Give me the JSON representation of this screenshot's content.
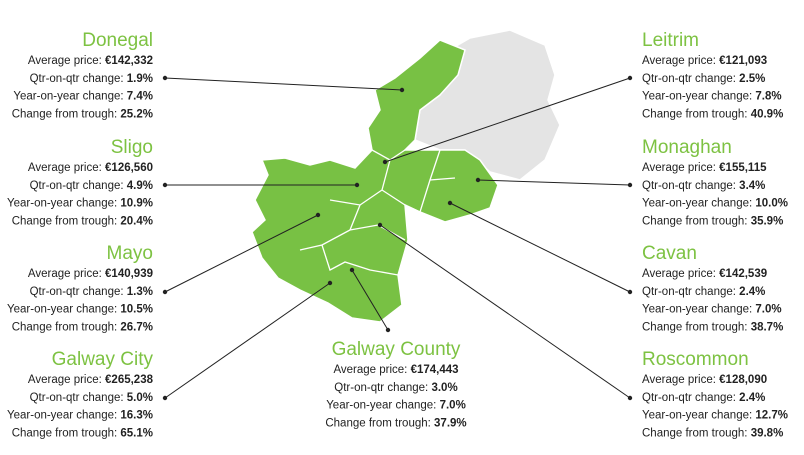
{
  "regions": [
    {
      "name": "Donegal",
      "stats": [
        {
          "label": "Average price:",
          "value": "€142,332"
        },
        {
          "label": "Qtr-on-qtr change:",
          "value": "1.9%"
        },
        {
          "label": "Year-on-year change:",
          "value": "7.4%"
        },
        {
          "label": "Change from trough:",
          "value": "25.2%"
        }
      ]
    },
    {
      "name": "Sligo",
      "stats": [
        {
          "label": "Average price:",
          "value": "€126,560"
        },
        {
          "label": "Qtr-on-qtr change:",
          "value": "4.9%"
        },
        {
          "label": "Year-on-year change:",
          "value": "10.9%"
        },
        {
          "label": "Change from trough:",
          "value": "20.4%"
        }
      ]
    },
    {
      "name": "Mayo",
      "stats": [
        {
          "label": "Average price:",
          "value": "€140,939"
        },
        {
          "label": "Qtr-on-qtr change:",
          "value": "1.3%"
        },
        {
          "label": "Year-on-year change:",
          "value": "10.5%"
        },
        {
          "label": "Change from trough:",
          "value": "26.7%"
        }
      ]
    },
    {
      "name": "Galway City",
      "stats": [
        {
          "label": "Average price:",
          "value": "€265,238"
        },
        {
          "label": "Qtr-on-qtr change:",
          "value": "5.0%"
        },
        {
          "label": "Year-on-year change:",
          "value": "16.3%"
        },
        {
          "label": "Change from trough:",
          "value": "65.1%"
        }
      ]
    },
    {
      "name": "Galway County",
      "stats": [
        {
          "label": "Average price:",
          "value": "€174,443"
        },
        {
          "label": "Qtr-on-qtr change:",
          "value": "3.0%"
        },
        {
          "label": "Year-on-year change:",
          "value": "7.0%"
        },
        {
          "label": "Change from trough:",
          "value": "37.9%"
        }
      ]
    },
    {
      "name": "Leitrim",
      "stats": [
        {
          "label": "Average price:",
          "value": "€121,093"
        },
        {
          "label": "Qtr-on-qtr change:",
          "value": "2.5%"
        },
        {
          "label": "Year-on-year change:",
          "value": "7.8%"
        },
        {
          "label": "Change from trough:",
          "value": "40.9%"
        }
      ]
    },
    {
      "name": "Monaghan",
      "stats": [
        {
          "label": "Average price:",
          "value": "€155,115"
        },
        {
          "label": "Qtr-on-qtr change:",
          "value": "3.4%"
        },
        {
          "label": "Year-on-year change:",
          "value": "10.0%"
        },
        {
          "label": "Change from trough:",
          "value": "35.9%"
        }
      ]
    },
    {
      "name": "Cavan",
      "stats": [
        {
          "label": "Average price:",
          "value": "€142,539"
        },
        {
          "label": "Qtr-on-qtr change:",
          "value": "2.4%"
        },
        {
          "label": "Year-on-year change:",
          "value": "7.0%"
        },
        {
          "label": "Change from trough:",
          "value": "38.7%"
        }
      ]
    },
    {
      "name": "Roscommon",
      "stats": [
        {
          "label": "Average price:",
          "value": "€128,090"
        },
        {
          "label": "Qtr-on-qtr change:",
          "value": "2.4%"
        },
        {
          "label": "Year-on-year change:",
          "value": "12.7%"
        },
        {
          "label": "Change from trough:",
          "value": "39.8%"
        }
      ]
    }
  ]
}
